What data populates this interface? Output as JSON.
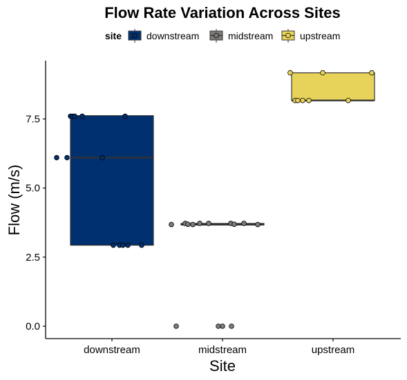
{
  "chart_data": {
    "type": "box",
    "title": "Flow Rate Variation Across Sites",
    "xlabel": "Site",
    "ylabel": "Flow (m/s)",
    "legend": {
      "title": "site",
      "position": "top",
      "entries": [
        "downstream",
        "midstream",
        "upstream"
      ]
    },
    "categories": [
      "downstream",
      "midstream",
      "upstream"
    ],
    "ylim": [
      -0.45,
      9.6
    ],
    "yticks": [
      0.0,
      2.5,
      5.0,
      7.5
    ],
    "ytick_labels": [
      "0.0",
      "2.5",
      "5.0",
      "7.5"
    ],
    "grid": false,
    "series": [
      {
        "name": "downstream",
        "color": "#00306f",
        "box": {
          "q1": 2.93,
          "median": 6.1,
          "q3": 7.62,
          "whisker_low": 2.93,
          "whisker_high": 7.62
        },
        "points": [
          7.6,
          7.6,
          7.6,
          7.6,
          7.6,
          6.1,
          6.1,
          6.1,
          2.93,
          2.93,
          2.93,
          2.93,
          2.93
        ]
      },
      {
        "name": "midstream",
        "color": "#7c7b78",
        "box": {
          "q1": 3.66,
          "median": 3.7,
          "q3": 3.72,
          "whisker_low": 3.66,
          "whisker_high": 3.72
        },
        "points": [
          3.68,
          3.72,
          3.69,
          3.68,
          3.72,
          3.72,
          3.72,
          3.69,
          3.72,
          3.68,
          0.0,
          0.0,
          0.0,
          0.0
        ]
      },
      {
        "name": "upstream",
        "color": "#e8d35a",
        "box": {
          "q1": 8.17,
          "median": 8.17,
          "q3": 9.17,
          "whisker_low": 8.17,
          "whisker_high": 9.17
        },
        "points": [
          9.17,
          9.17,
          9.17,
          8.17,
          8.17,
          8.17,
          8.17,
          8.17
        ]
      }
    ]
  }
}
